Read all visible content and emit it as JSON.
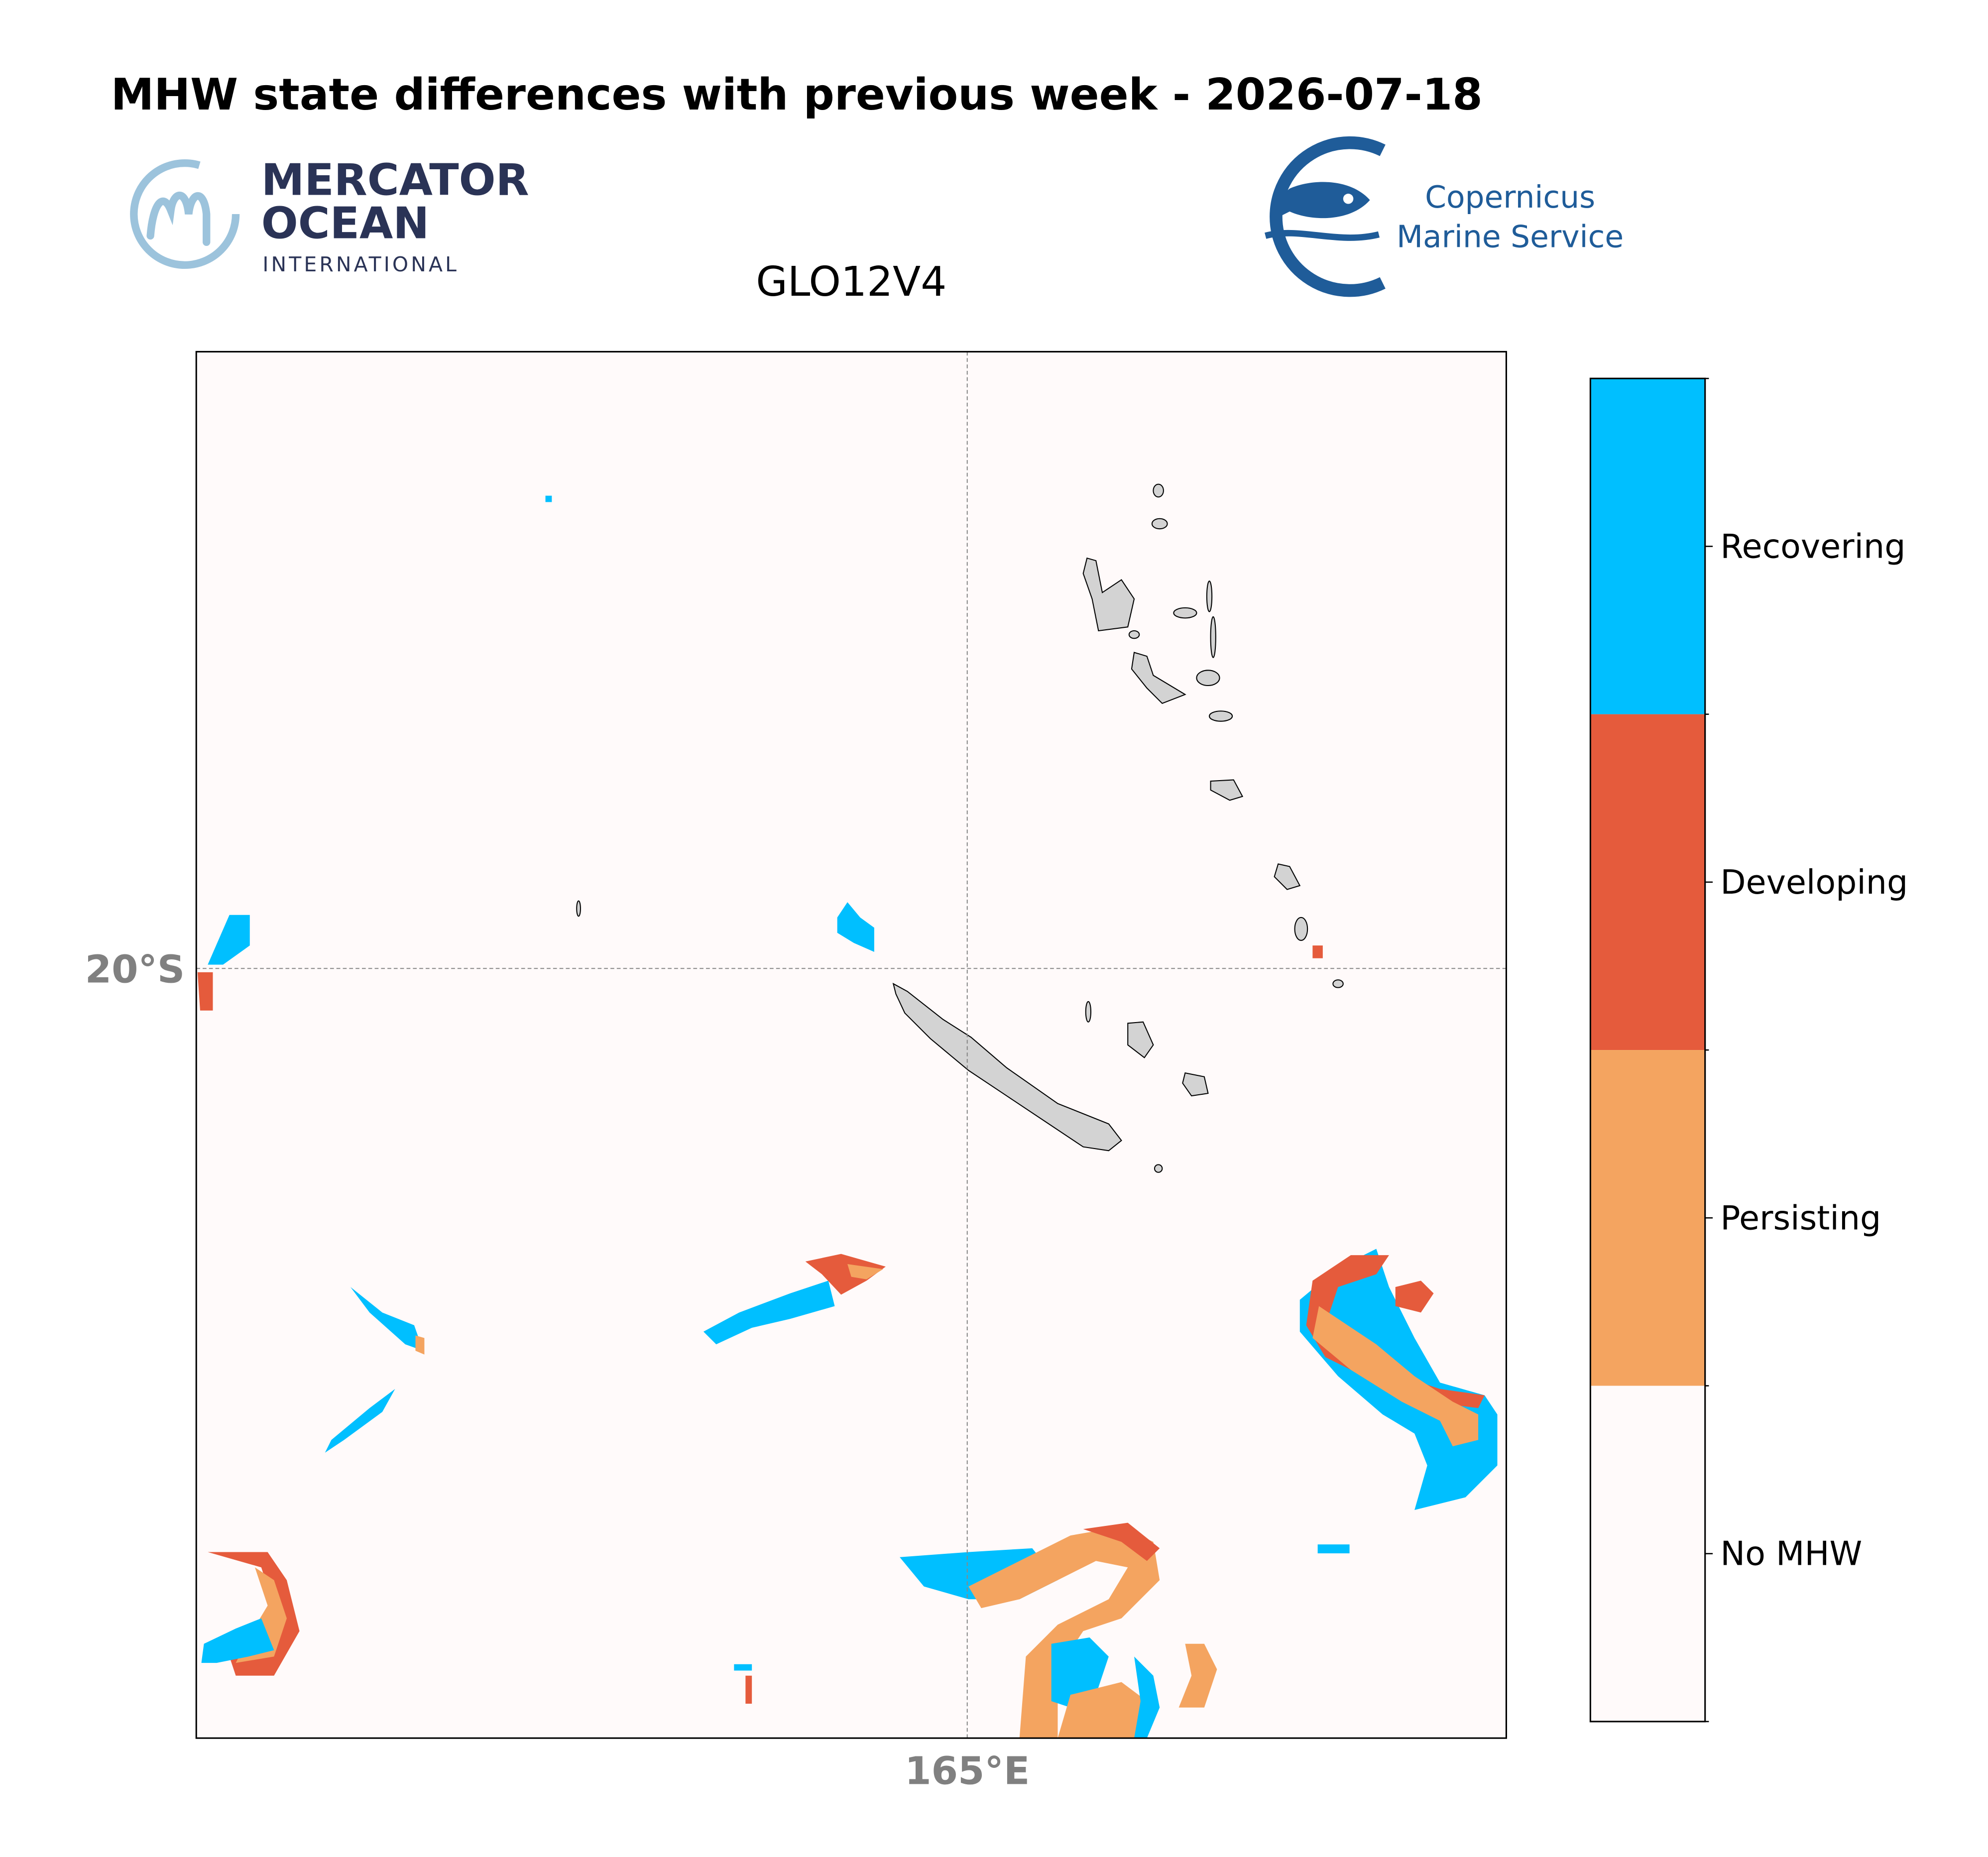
{
  "header": {
    "title": "MHW state differences with previous week - 2026-07-18",
    "subtitle": "GLO12V4"
  },
  "logos": {
    "mercator": [
      "MERCATOR",
      "OCEAN",
      "INTERNATIONAL"
    ],
    "copernicus": [
      "Copernicus",
      "Marine Service"
    ]
  },
  "map": {
    "x_label": "165°E",
    "y_label": "20°S"
  },
  "legend": {
    "items": [
      {
        "name": "Recovering",
        "color": "#00bfff"
      },
      {
        "name": "Developing",
        "color": "#e55b3c"
      },
      {
        "name": "Persisting",
        "color": "#f4a460"
      },
      {
        "name": "No MHW",
        "color": "#fffafa"
      }
    ]
  }
}
